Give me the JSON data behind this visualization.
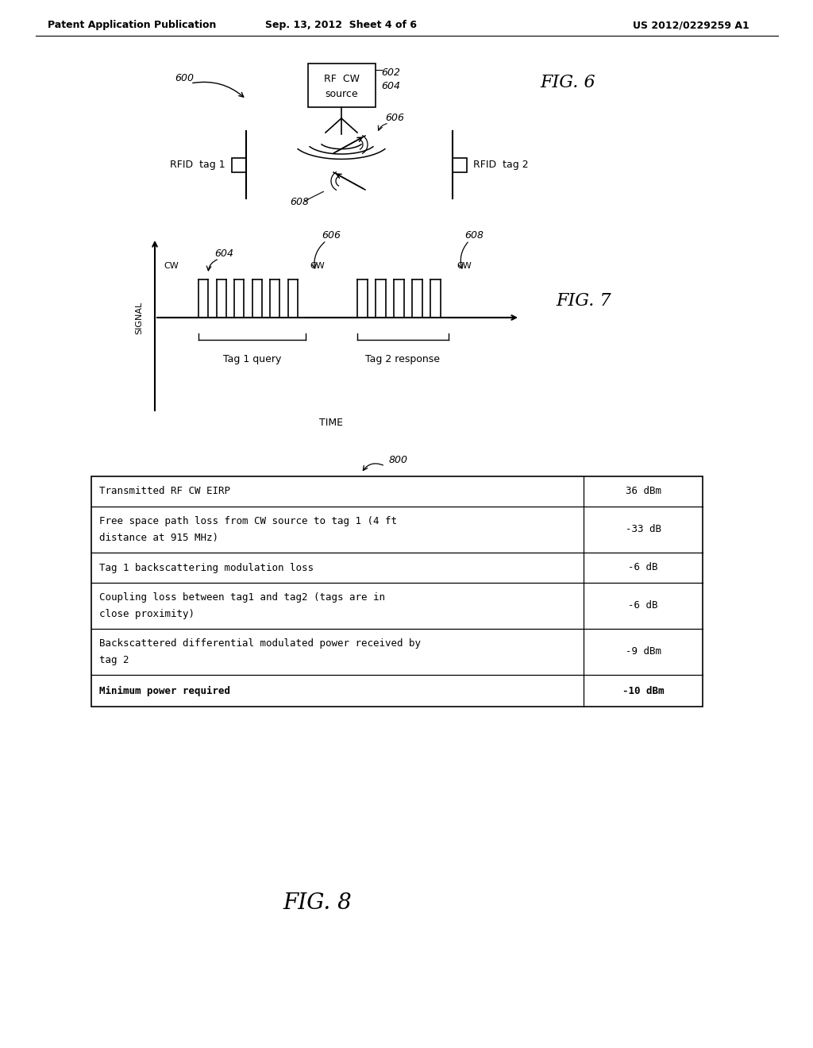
{
  "bg_color": "#ffffff",
  "header_left": "Patent Application Publication",
  "header_mid": "Sep. 13, 2012  Sheet 4 of 6",
  "header_right": "US 2012/0229259 A1",
  "fig6_label": "FIG. 6",
  "fig7_label": "FIG. 7",
  "fig8_label": "FIG. 8",
  "table_rows": [
    [
      "Transmitted RF CW EIRP",
      "36 dBm",
      false
    ],
    [
      "Free space path loss from CW source to tag 1 (4 ft\ndistance at 915 MHz)",
      "-33 dB",
      false
    ],
    [
      "Tag 1 backscattering modulation loss",
      "-6 dB",
      false
    ],
    [
      "Coupling loss between tag1 and tag2 (tags are in\nclose proximity)",
      "-6 dB",
      false
    ],
    [
      "Backscattered differential modulated power received by\ntag 2",
      "-9 dBm",
      false
    ],
    [
      "Minimum power required",
      "-10 dBm",
      true
    ]
  ]
}
